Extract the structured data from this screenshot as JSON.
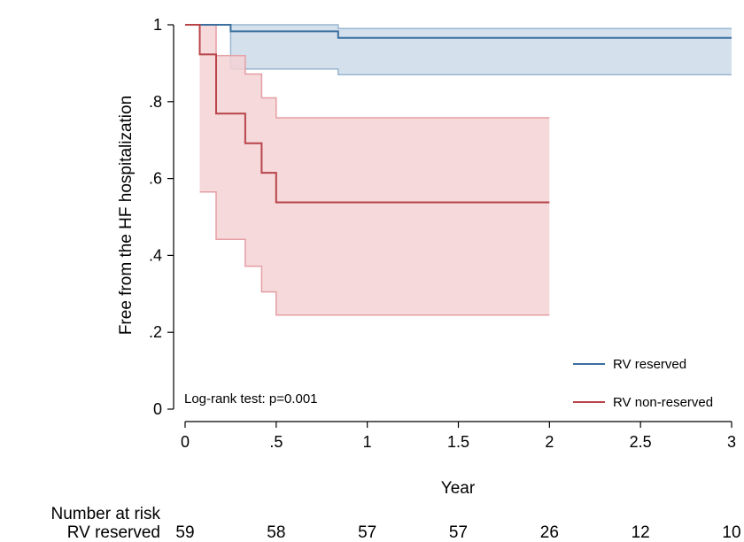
{
  "chart_data": {
    "type": "line",
    "subtype": "kaplan-meier",
    "xlabel": "Year",
    "ylabel": "Free from the HF hospitalization",
    "xlim": [
      0,
      3
    ],
    "ylim": [
      0,
      1
    ],
    "x_ticks": [
      0,
      0.5,
      1,
      1.5,
      2,
      2.5,
      3
    ],
    "x_tick_labels": [
      "0",
      ".5",
      "1",
      "1.5",
      "2",
      "2.5",
      "3"
    ],
    "y_ticks": [
      0,
      0.2,
      0.4,
      0.6,
      0.8,
      1
    ],
    "y_tick_labels": [
      "0",
      ".2",
      ".4",
      ".6",
      ".8",
      "1"
    ],
    "grid": false,
    "legend_position": "bottom-right",
    "annotation": "Log-rank test: p=0.001",
    "series": [
      {
        "name": "RV reserved",
        "color": "#3a6f9f",
        "band_color": "#cddcea",
        "band_edge_color": "#9ab6d0",
        "steps": [
          [
            0,
            1
          ],
          [
            0.25,
            0.983
          ],
          [
            0.84,
            0.966
          ],
          [
            3,
            0.966
          ]
        ],
        "lower": [
          [
            0.08,
            1
          ],
          [
            0.25,
            0.885
          ],
          [
            0.84,
            0.87
          ],
          [
            3,
            0.87
          ]
        ],
        "upper": [
          [
            0.08,
            1
          ],
          [
            0.25,
            1
          ],
          [
            0.84,
            0.99
          ],
          [
            3,
            0.99
          ]
        ]
      },
      {
        "name": "RV non-reserved",
        "color": "#b8444a",
        "band_color": "#f3d2d5",
        "band_edge_color": "#e59ea4",
        "steps": [
          [
            0,
            1
          ],
          [
            0.08,
            0.923
          ],
          [
            0.17,
            0.769
          ],
          [
            0.33,
            0.692
          ],
          [
            0.42,
            0.615
          ],
          [
            0.5,
            0.538
          ],
          [
            2,
            0.538
          ]
        ],
        "lower": [
          [
            0.08,
            0.565
          ],
          [
            0.17,
            0.442
          ],
          [
            0.33,
            0.372
          ],
          [
            0.42,
            0.305
          ],
          [
            0.5,
            0.245
          ],
          [
            2,
            0.245
          ]
        ],
        "upper": [
          [
            0.08,
            1
          ],
          [
            0.17,
            0.92
          ],
          [
            0.33,
            0.872
          ],
          [
            0.42,
            0.81
          ],
          [
            0.5,
            0.758
          ],
          [
            2,
            0.758
          ]
        ]
      }
    ],
    "number_at_risk": {
      "title": "Number at risk",
      "times": [
        0,
        0.5,
        1,
        1.5,
        2,
        2.5,
        3
      ],
      "rows": [
        {
          "label": "RV reserved",
          "values": [
            "59",
            "58",
            "57",
            "57",
            "26",
            "12",
            "10"
          ]
        },
        {
          "label": "RV non-reserved",
          "values": [
            "13",
            "8",
            "7",
            "7",
            "3",
            "0",
            "0"
          ]
        }
      ]
    }
  }
}
